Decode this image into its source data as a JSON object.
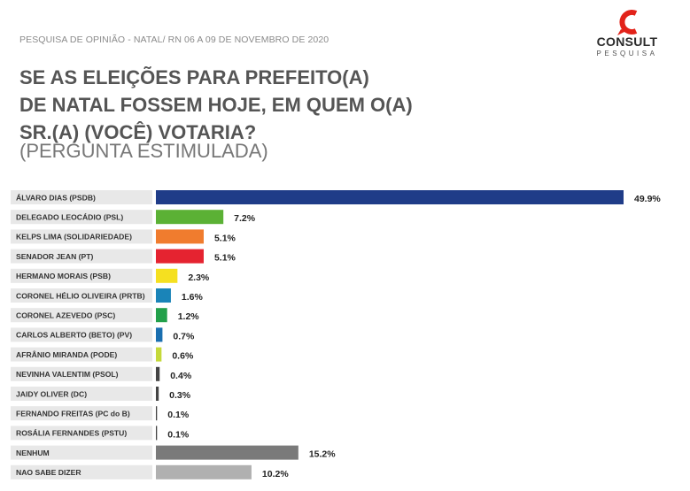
{
  "header": {
    "survey_note": "PESQUISA DE OPINIÃO - NATAL/ RN 06 A 09 DE NOVEMBRO DE 2020",
    "logo_name": "CONSULT",
    "logo_sub": "PESQUISA",
    "logo_color": "#e2231a"
  },
  "question": {
    "lines": [
      "SE AS ELEIÇÕES PARA PREFEITO(A)",
      "DE NATAL FOSSEM HOJE, EM QUEM O(A)",
      "SR.(A) (VOCÊ) VOTARIA?"
    ],
    "subtitle": "(PERGUNTA ESTIMULADA)"
  },
  "chart_data": {
    "type": "bar",
    "orientation": "horizontal",
    "unit": "%",
    "xlim": [
      0,
      50
    ],
    "categories": [
      "ÁLVARO DIAS (PSDB)",
      "DELEGADO LEOCÁDIO (PSL)",
      "KELPS LIMA (SOLIDARIEDADE)",
      "SENADOR JEAN (PT)",
      "HERMANO MORAIS (PSB)",
      "CORONEL HÉLIO OLIVEIRA (PRTB)",
      "CORONEL AZEVEDO (PSC)",
      "CARLOS ALBERTO (BETO) (PV)",
      "AFRÂNIO MIRANDA (PODE)",
      "NEVINHA VALENTIM (PSOL)",
      "JAIDY OLIVER (DC)",
      "FERNANDO FREITAS (PC do B)",
      "ROSÁLIA FERNANDES (PSTU)",
      "NENHUM",
      "NAO SABE DIZER"
    ],
    "values": [
      49.9,
      7.2,
      5.1,
      5.1,
      2.3,
      1.6,
      1.2,
      0.7,
      0.6,
      0.4,
      0.3,
      0.1,
      0.1,
      15.2,
      10.2
    ],
    "value_labels": [
      "49.9%",
      "7.2%",
      "5.1%",
      "5.1%",
      "2.3%",
      "1.6%",
      "1.2%",
      "0.7%",
      "0.6%",
      "0.4%",
      "0.3%",
      "0.1%",
      "0.1%",
      "15.2%",
      "10.2%"
    ],
    "colors": [
      "#1f3c88",
      "#5bb135",
      "#f07c2e",
      "#e52330",
      "#f5e020",
      "#1a84b8",
      "#22a04a",
      "#1a6fb0",
      "#c5d93a",
      "#444444",
      "#444444",
      "#444444",
      "#444444",
      "#7a7a7a",
      "#b0b0b0"
    ],
    "grid": false,
    "legend": "none"
  }
}
